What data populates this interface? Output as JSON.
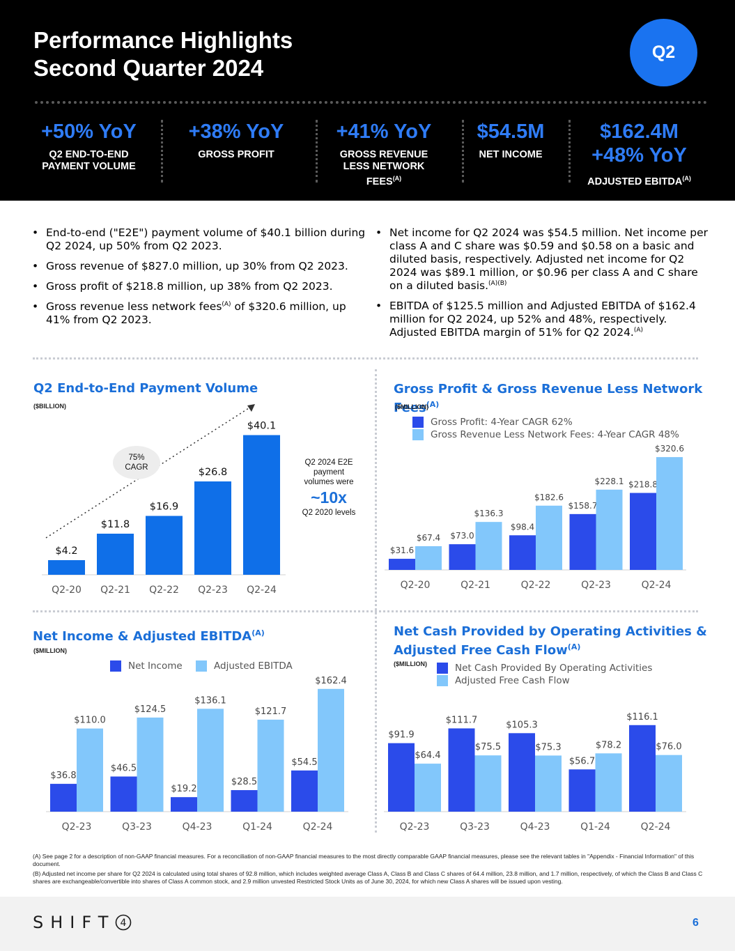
{
  "header": {
    "title_line1": "Performance Highlights",
    "title_line2": "Second Quarter 2024",
    "badge": "Q2"
  },
  "kpis": [
    {
      "value": "+50% YoY",
      "label_line1": "Q2 END-TO-END",
      "label_line2": "PAYMENT VOLUME"
    },
    {
      "value": "+38% YoY",
      "label_line1": "GROSS PROFIT"
    },
    {
      "value": "+41% YoY",
      "label_line1": "GROSS REVENUE",
      "label_line2": "LESS NETWORK",
      "label_line3": "FEES",
      "note": "(A)"
    },
    {
      "value": "$54.5M",
      "label_line1": "NET INCOME"
    },
    {
      "value": "$162.4M",
      "value2": "+48% YoY",
      "label_line1": "ADJUSTED EBITDA",
      "note": "(A)"
    }
  ],
  "bullets_left": [
    {
      "text": "End-to-end (\"E2E\") payment volume of $40.1 billion during Q2 2024, up 50% from Q2 2023."
    },
    {
      "text": "Gross revenue of $827.0 million, up 30% from Q2 2023."
    },
    {
      "text": "Gross profit of $218.8 million, up 38% from Q2 2023."
    },
    {
      "pre": "Gross revenue less network fees",
      "note": "(A)",
      "post": " of $320.6 million, up 41% from Q2 2023."
    }
  ],
  "bullets_right": [
    {
      "pre": "Net income for Q2 2024 was $54.5 million. Net income per class A and C share was $0.59 and $0.58 on a basic and diluted basis, respectively. Adjusted net income for Q2 2024 was $89.1 million, or $0.96 per class A and C share on a diluted basis.",
      "note": "(A)(B)"
    },
    {
      "pre": "EBITDA of $125.5 million and Adjusted EBITDA of $162.4 million for Q2 2024, up 52% and 48%, respectively. Adjusted EBITDA margin of 51% for Q2 2024.",
      "note": "(A)"
    }
  ],
  "colors": {
    "dark_blue": "#2b4bea",
    "light_blue": "#82c7fb",
    "e2e_blue": "#0f6fe8",
    "accent": "#1b6fd8"
  },
  "chart_data": [
    {
      "type": "bar",
      "title": "Q2 End-to-End Payment Volume",
      "unit": "($BILLION)",
      "categories": [
        "Q2-20",
        "Q2-21",
        "Q2-22",
        "Q2-23",
        "Q2-24"
      ],
      "values": [
        4.2,
        11.8,
        16.9,
        26.8,
        40.1
      ],
      "labels": [
        "$4.2",
        "$11.8",
        "$16.9",
        "$26.8",
        "$40.1"
      ],
      "annotation_cagr_line1": "75%",
      "annotation_cagr_line2": "CAGR",
      "callout_line1": "Q2 2024 E2E",
      "callout_line2": "payment",
      "callout_line3": "volumes were",
      "callout_big": "~10x",
      "callout_line4": "Q2 2020 levels"
    },
    {
      "type": "bar",
      "title": "Gross Profit & Gross Revenue Less Network Fees",
      "title_note": "(A)",
      "unit": "($MILLION)",
      "categories": [
        "Q2-20",
        "Q2-21",
        "Q2-22",
        "Q2-23",
        "Q2-24"
      ],
      "series": [
        {
          "name": "Gross Profit: 4-Year CAGR 62%",
          "values": [
            31.6,
            73.0,
            98.4,
            158.7,
            218.8
          ],
          "labels": [
            "$31.6",
            "$73.0",
            "$98.4",
            "$158.7",
            "$218.8"
          ]
        },
        {
          "name": "Gross Revenue Less Network Fees: 4-Year CAGR 48%",
          "values": [
            67.4,
            136.3,
            182.6,
            228.1,
            320.6
          ],
          "labels": [
            "$67.4",
            "$136.3",
            "$182.6",
            "$228.1",
            "$320.6"
          ]
        }
      ]
    },
    {
      "type": "bar",
      "title": "Net Income & Adjusted EBITDA",
      "title_note": "(A)",
      "unit": "($MILLION)",
      "categories": [
        "Q2-23",
        "Q3-23",
        "Q4-23",
        "Q1-24",
        "Q2-24"
      ],
      "series": [
        {
          "name": "Net Income",
          "values": [
            36.8,
            46.5,
            19.2,
            28.5,
            54.5
          ],
          "labels": [
            "$36.8",
            "$46.5",
            "$19.2",
            "$28.5",
            "$54.5"
          ]
        },
        {
          "name": "Adjusted EBITDA",
          "values": [
            110.0,
            124.5,
            136.1,
            121.7,
            162.4
          ],
          "labels": [
            "$110.0",
            "$124.5",
            "$136.1",
            "$121.7",
            "$162.4"
          ]
        }
      ]
    },
    {
      "type": "bar",
      "title_line1": "Net Cash Provided by Operating Activities &",
      "title_line2": "Adjusted Free Cash Flow",
      "title_note": "(A)",
      "unit": "($MILLION)",
      "categories": [
        "Q2-23",
        "Q3-23",
        "Q4-23",
        "Q1-24",
        "Q2-24"
      ],
      "series": [
        {
          "name": "Net Cash Provided By Operating Activities",
          "values": [
            91.9,
            111.7,
            105.3,
            56.7,
            116.1
          ],
          "labels": [
            "$91.9",
            "$111.7",
            "$105.3",
            "$56.7",
            "$116.1"
          ]
        },
        {
          "name": "Adjusted Free Cash Flow",
          "values": [
            64.4,
            75.5,
            75.3,
            78.2,
            76.0
          ],
          "labels": [
            "$64.4",
            "$75.5",
            "$75.3",
            "$78.2",
            "$76.0"
          ]
        }
      ]
    }
  ],
  "footnotes": [
    "(A) See page 2 for a description of non-GAAP financial measures. For a reconciliation of non-GAAP financial measures to the most directly comparable GAAP financial measures, please see the relevant tables in \"Appendix - Financial Information\" of this document.",
    "(B) Adjusted net income per share for Q2 2024 is calculated using total shares of 92.8 million, which includes weighted average Class A, Class B and Class C shares of 64.4 million, 23.8 million, and 1.7 million, respectively, of which the Class B and Class C shares are exchangeable/convertible into shares of Class A common stock, and 2.9 million unvested Restricted Stock Units as of June 30, 2024, for which new Class A shares will be issued upon vesting."
  ],
  "footer": {
    "logo_text": "SHIFT",
    "logo_digit": "4",
    "page_number": "6"
  }
}
